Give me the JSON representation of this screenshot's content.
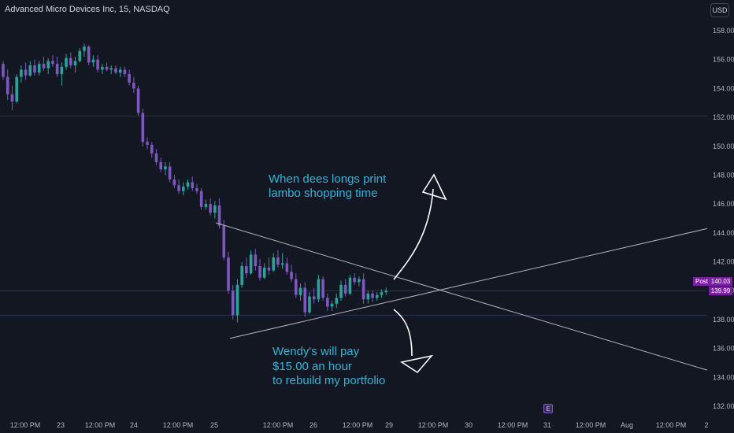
{
  "symbol": {
    "title": "Advanced Micro Devices Inc, 15, NASDAQ"
  },
  "currency": {
    "label": "USD"
  },
  "post_label": "Post",
  "price_labels": {
    "upper": "140.03",
    "lower": "139.99"
  },
  "earnings_label": "E",
  "annotations": [
    {
      "lines": [
        "When dees longs print",
        "lambo shopping time"
      ]
    },
    {
      "lines": [
        "Wendy's will pay",
        "$15.00 an hour",
        "to rebuild my portfolio"
      ]
    }
  ],
  "colors": {
    "background": "#131722",
    "up": "#26a69a",
    "down": "#7e57c2",
    "annotation": "#2fb4d6",
    "trendline": "#b2b5be"
  },
  "chart_data": {
    "type": "candlestick",
    "title": "Advanced Micro Devices Inc, 15, NASDAQ",
    "ylim": [
      131,
      159
    ],
    "y_ticks": [
      "132.00",
      "134.00",
      "136.00",
      "138.00",
      "140.00",
      "142.00",
      "144.00",
      "146.00",
      "148.00",
      "150.00",
      "152.00",
      "154.00",
      "156.00",
      "158.00"
    ],
    "x_ticks": [
      "12:00 PM",
      "23",
      "12:00 PM",
      "24",
      "12:00 PM",
      "25",
      "12:00 PM",
      "26",
      "12:00 PM",
      "29",
      "12:00 PM",
      "30",
      "12:00 PM",
      "31",
      "12:00 PM",
      "Aug",
      "12:00 PM",
      "2"
    ],
    "horizontal_levels": [
      152.1,
      140.0,
      138.3
    ],
    "last_price": {
      "post": 140.03,
      "close": 139.99
    },
    "candles": [
      [
        155.7,
        155.9,
        154.6,
        154.8
      ],
      [
        154.8,
        155.3,
        153.2,
        153.6
      ],
      [
        153.6,
        154.2,
        152.5,
        153.1
      ],
      [
        153.1,
        155.0,
        153.0,
        154.8
      ],
      [
        154.8,
        155.6,
        154.4,
        155.3
      ],
      [
        155.3,
        155.8,
        154.6,
        154.9
      ],
      [
        154.9,
        155.9,
        154.8,
        155.6
      ],
      [
        155.6,
        156.0,
        154.9,
        155.1
      ],
      [
        155.1,
        155.9,
        154.9,
        155.7
      ],
      [
        155.7,
        156.2,
        155.2,
        155.4
      ],
      [
        155.4,
        156.1,
        155.0,
        155.9
      ],
      [
        155.9,
        156.3,
        155.5,
        155.7
      ],
      [
        155.7,
        156.2,
        154.8,
        155.0
      ],
      [
        155.0,
        155.8,
        154.2,
        155.5
      ],
      [
        155.5,
        156.4,
        155.3,
        156.1
      ],
      [
        156.1,
        156.5,
        155.4,
        155.6
      ],
      [
        155.6,
        156.2,
        155.1,
        155.9
      ],
      [
        155.9,
        156.8,
        155.8,
        156.6
      ],
      [
        156.6,
        157.1,
        156.2,
        156.9
      ],
      [
        156.9,
        157.0,
        155.6,
        155.8
      ],
      [
        155.8,
        156.3,
        155.5,
        156.0
      ],
      [
        156.0,
        156.3,
        155.1,
        155.3
      ],
      [
        155.3,
        155.7,
        155.0,
        155.5
      ],
      [
        155.5,
        155.8,
        155.2,
        155.3
      ],
      [
        155.3,
        155.6,
        155.0,
        155.4
      ],
      [
        155.4,
        155.6,
        155.0,
        155.1
      ],
      [
        155.1,
        155.5,
        154.8,
        155.3
      ],
      [
        155.3,
        155.5,
        154.8,
        155.0
      ],
      [
        155.0,
        155.3,
        154.2,
        154.4
      ],
      [
        154.4,
        154.8,
        153.7,
        154.0
      ],
      [
        154.0,
        154.2,
        152.1,
        152.3
      ],
      [
        152.3,
        152.6,
        150.0,
        150.3
      ],
      [
        150.3,
        150.6,
        149.8,
        150.1
      ],
      [
        150.1,
        150.3,
        149.2,
        149.5
      ],
      [
        149.5,
        149.8,
        148.7,
        148.9
      ],
      [
        148.9,
        149.2,
        148.2,
        148.4
      ],
      [
        148.4,
        148.9,
        148.0,
        148.6
      ],
      [
        148.6,
        148.9,
        147.5,
        147.7
      ],
      [
        147.7,
        148.0,
        147.1,
        147.3
      ],
      [
        147.3,
        147.7,
        146.7,
        146.9
      ],
      [
        146.9,
        147.5,
        146.6,
        147.2
      ],
      [
        147.2,
        147.7,
        147.0,
        147.5
      ],
      [
        147.5,
        147.9,
        146.9,
        147.1
      ],
      [
        147.1,
        147.4,
        146.7,
        146.9
      ],
      [
        146.9,
        147.1,
        145.6,
        145.8
      ],
      [
        145.8,
        146.3,
        145.6,
        146.0
      ],
      [
        146.0,
        146.4,
        145.2,
        145.4
      ],
      [
        145.4,
        146.2,
        145.0,
        145.9
      ],
      [
        145.9,
        146.4,
        144.3,
        144.5
      ],
      [
        144.5,
        144.9,
        142.1,
        142.3
      ],
      [
        142.3,
        142.7,
        139.8,
        140.0
      ],
      [
        140.0,
        140.4,
        138.0,
        138.3
      ],
      [
        138.3,
        140.8,
        137.8,
        140.4
      ],
      [
        140.4,
        142.0,
        140.2,
        141.7
      ],
      [
        141.7,
        142.3,
        140.9,
        141.2
      ],
      [
        141.2,
        142.8,
        141.1,
        142.5
      ],
      [
        142.5,
        142.9,
        141.4,
        141.7
      ],
      [
        141.7,
        142.2,
        140.7,
        140.9
      ],
      [
        140.9,
        141.9,
        140.8,
        141.6
      ],
      [
        141.6,
        142.3,
        141.1,
        141.4
      ],
      [
        141.4,
        142.6,
        141.3,
        142.3
      ],
      [
        142.3,
        142.8,
        141.6,
        141.8
      ],
      [
        141.8,
        142.6,
        141.5,
        141.9
      ],
      [
        141.9,
        142.3,
        141.1,
        141.3
      ],
      [
        141.3,
        141.8,
        140.6,
        140.8
      ],
      [
        140.8,
        141.2,
        139.5,
        139.7
      ],
      [
        139.7,
        140.5,
        139.3,
        140.2
      ],
      [
        140.2,
        140.6,
        138.2,
        138.5
      ],
      [
        138.5,
        139.9,
        138.4,
        139.6
      ],
      [
        139.6,
        140.2,
        139.1,
        139.4
      ],
      [
        139.4,
        141.1,
        139.2,
        140.8
      ],
      [
        140.8,
        141.0,
        139.3,
        139.5
      ],
      [
        139.5,
        139.8,
        138.6,
        138.9
      ],
      [
        138.9,
        139.3,
        138.6,
        139.1
      ],
      [
        139.1,
        139.8,
        138.8,
        139.5
      ],
      [
        139.5,
        140.7,
        139.3,
        140.4
      ],
      [
        140.4,
        140.8,
        139.6,
        139.8
      ],
      [
        139.8,
        141.1,
        139.7,
        140.9
      ],
      [
        140.9,
        141.2,
        140.4,
        140.6
      ],
      [
        140.6,
        141.0,
        140.3,
        140.8
      ],
      [
        140.8,
        141.2,
        139.1,
        139.4
      ],
      [
        139.4,
        140.0,
        139.1,
        139.8
      ],
      [
        139.8,
        140.0,
        139.2,
        139.5
      ],
      [
        139.5,
        139.9,
        139.3,
        139.7
      ],
      [
        139.7,
        140.1,
        139.5,
        139.9
      ],
      [
        139.9,
        140.2,
        139.7,
        140.0
      ]
    ],
    "trendlines": [
      {
        "name": "descending",
        "from": [
          "Jul 25 09:30",
          144.7
        ],
        "to": [
          "Aug 2 09:30",
          134.5
        ]
      },
      {
        "name": "ascending",
        "from": [
          "Jul 25 12:00",
          136.7
        ],
        "to": [
          "Aug 2 09:30",
          144.3
        ]
      }
    ]
  }
}
